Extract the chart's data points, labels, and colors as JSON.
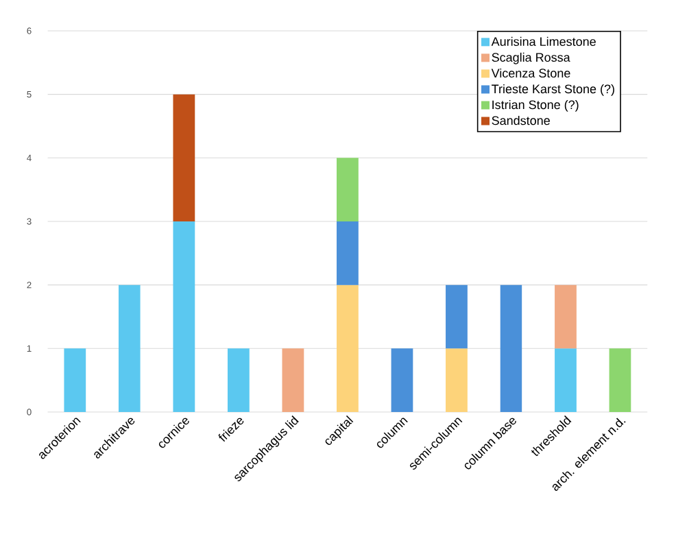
{
  "chart_data": {
    "type": "bar",
    "stacked": true,
    "categories": [
      "acroterion",
      "architrave",
      "cornice",
      "frieze",
      "sarcophagus lid",
      "capital",
      "column",
      "semi-column",
      "column base",
      "threshold",
      "arch. element n.d."
    ],
    "series": [
      {
        "name": "Aurisina Limestone",
        "color": "#5bc8f0",
        "values": [
          1,
          2,
          3,
          1,
          null,
          null,
          null,
          null,
          null,
          1,
          null
        ]
      },
      {
        "name": "Scaglia Rossa",
        "color": "#f0a882",
        "values": [
          null,
          null,
          null,
          null,
          1,
          null,
          null,
          null,
          null,
          1,
          null
        ]
      },
      {
        "name": "Vicenza Stone",
        "color": "#fdd37a",
        "values": [
          null,
          null,
          null,
          null,
          null,
          2,
          null,
          1,
          null,
          null,
          null
        ]
      },
      {
        "name": "Trieste Karst Stone (?)",
        "color": "#4a90d9",
        "values": [
          null,
          null,
          null,
          null,
          null,
          1,
          1,
          1,
          2,
          null,
          null
        ]
      },
      {
        "name": "Istrian Stone (?)",
        "color": "#8cd66e",
        "values": [
          null,
          null,
          null,
          null,
          null,
          1,
          null,
          null,
          null,
          null,
          1
        ]
      },
      {
        "name": "Sandstone",
        "color": "#c05018",
        "values": [
          null,
          null,
          2,
          null,
          null,
          null,
          null,
          null,
          null,
          null,
          null
        ]
      }
    ],
    "ylim": [
      0,
      6
    ],
    "yticks": [
      0,
      1,
      2,
      3,
      4,
      5,
      6
    ],
    "grid": "y",
    "legend": "top right"
  }
}
